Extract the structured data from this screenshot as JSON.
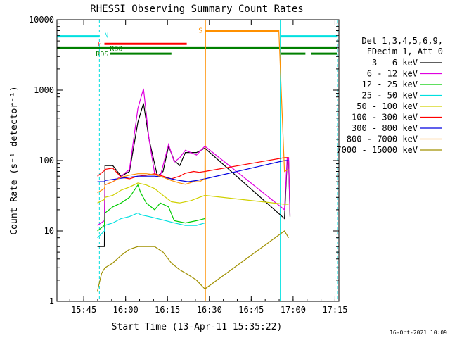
{
  "chart_data": {
    "type": "line",
    "title": "RHESSI Observing Summary Count Rates",
    "xlabel": "Start Time (13-Apr-11 15:35:22)",
    "ylabel": "Count Rate (s⁻¹ detector⁻¹)",
    "y_scale": "log",
    "ylim": [
      1,
      10000
    ],
    "xlim_minutes": [
      0,
      101
    ],
    "x_ticks": [
      {
        "label": "15:45",
        "t": 9.6
      },
      {
        "label": "16:00",
        "t": 24.6
      },
      {
        "label": "16:15",
        "t": 39.6
      },
      {
        "label": "16:30",
        "t": 54.6
      },
      {
        "label": "16:45",
        "t": 69.6
      },
      {
        "label": "17:00",
        "t": 84.6
      },
      {
        "label": "17:15",
        "t": 99.6
      }
    ],
    "y_ticks": [
      {
        "label": "1",
        "v": 1
      },
      {
        "label": "10",
        "v": 10
      },
      {
        "label": "100",
        "v": 100
      },
      {
        "label": "1000",
        "v": 1000
      },
      {
        "label": "10000",
        "v": 10000
      }
    ],
    "legend_header": [
      "Det 1,3,4,5,6,9,",
      "FDecim 1, Att 0"
    ],
    "series": [
      {
        "name": "3 - 6 keV",
        "color": "#000000",
        "points": [
          [
            14.5,
            6
          ],
          [
            17,
            6
          ],
          [
            17.2,
            85
          ],
          [
            20,
            85
          ],
          [
            23,
            60
          ],
          [
            26,
            70
          ],
          [
            29,
            350
          ],
          [
            31,
            650
          ],
          [
            33,
            200
          ],
          [
            36,
            60
          ],
          [
            38,
            70
          ],
          [
            40,
            160
          ],
          [
            42,
            100
          ],
          [
            44,
            85
          ],
          [
            46,
            130
          ],
          [
            50,
            130
          ],
          [
            53,
            150
          ],
          [
            81.5,
            15
          ],
          [
            82.5,
            100
          ],
          [
            83,
            100
          ],
          [
            83.5,
            16
          ]
        ]
      },
      {
        "name": "6 - 12 keV",
        "color": "#e000e0",
        "points": [
          [
            14.5,
            12
          ],
          [
            17,
            14
          ],
          [
            17.2,
            45
          ],
          [
            20,
            50
          ],
          [
            23,
            60
          ],
          [
            26,
            75
          ],
          [
            29,
            550
          ],
          [
            31,
            1050
          ],
          [
            33,
            200
          ],
          [
            35,
            65
          ],
          [
            37,
            60
          ],
          [
            40,
            170
          ],
          [
            42,
            95
          ],
          [
            44,
            110
          ],
          [
            46,
            140
          ],
          [
            50,
            120
          ],
          [
            53,
            160
          ],
          [
            81.5,
            20
          ],
          [
            82.5,
            110
          ],
          [
            83,
            110
          ],
          [
            83.5,
            17
          ]
        ]
      },
      {
        "name": "12 - 25 keV",
        "color": "#00cc00",
        "points": [
          [
            14.5,
            10
          ],
          [
            17,
            12
          ],
          [
            17.2,
            18
          ],
          [
            20,
            22
          ],
          [
            23,
            25
          ],
          [
            26,
            30
          ],
          [
            29,
            45
          ],
          [
            30,
            35
          ],
          [
            32,
            25
          ],
          [
            35,
            20
          ],
          [
            37,
            25
          ],
          [
            40,
            22
          ],
          [
            42,
            14
          ],
          [
            46,
            13
          ],
          [
            50,
            14
          ],
          [
            53,
            15
          ]
        ]
      },
      {
        "name": "25 - 50 keV",
        "color": "#00e0e0",
        "points": [
          [
            14.5,
            8
          ],
          [
            17,
            10
          ],
          [
            17.2,
            12
          ],
          [
            20,
            13
          ],
          [
            23,
            15
          ],
          [
            26,
            16
          ],
          [
            29,
            18
          ],
          [
            30,
            17
          ],
          [
            33,
            16
          ],
          [
            36,
            15
          ],
          [
            39,
            14
          ],
          [
            42,
            13
          ],
          [
            46,
            12
          ],
          [
            50,
            12
          ],
          [
            53,
            13
          ]
        ]
      },
      {
        "name": "50 - 100 keV",
        "color": "#d0d000",
        "points": [
          [
            14.5,
            25
          ],
          [
            17,
            28
          ],
          [
            17.2,
            30
          ],
          [
            20,
            32
          ],
          [
            23,
            38
          ],
          [
            26,
            42
          ],
          [
            29,
            48
          ],
          [
            32,
            45
          ],
          [
            35,
            40
          ],
          [
            38,
            32
          ],
          [
            41,
            26
          ],
          [
            44,
            25
          ],
          [
            48,
            27
          ],
          [
            51,
            30
          ],
          [
            53,
            32
          ],
          [
            81.5,
            24
          ],
          [
            83,
            24
          ]
        ]
      },
      {
        "name": "100 - 300 keV",
        "color": "#ff0000",
        "points": [
          [
            14.5,
            60
          ],
          [
            17,
            72
          ],
          [
            17.2,
            75
          ],
          [
            20,
            78
          ],
          [
            23,
            58
          ],
          [
            26,
            55
          ],
          [
            29,
            60
          ],
          [
            32,
            62
          ],
          [
            35,
            65
          ],
          [
            38,
            60
          ],
          [
            41,
            55
          ],
          [
            44,
            60
          ],
          [
            46,
            66
          ],
          [
            49,
            70
          ],
          [
            51,
            68
          ],
          [
            53,
            70
          ],
          [
            81.5,
            110
          ],
          [
            83,
            110
          ]
        ]
      },
      {
        "name": "300 - 800 keV",
        "color": "#0000e0",
        "points": [
          [
            14.5,
            50
          ],
          [
            17,
            50
          ],
          [
            17.2,
            52
          ],
          [
            20,
            54
          ],
          [
            23,
            56
          ],
          [
            26,
            58
          ],
          [
            29,
            60
          ],
          [
            32,
            60
          ],
          [
            35,
            60
          ],
          [
            38,
            58
          ],
          [
            41,
            55
          ],
          [
            44,
            52
          ],
          [
            47,
            50
          ],
          [
            50,
            52
          ],
          [
            53,
            55
          ],
          [
            81.5,
            100
          ],
          [
            83,
            100
          ]
        ]
      },
      {
        "name": "800 - 7000 keV",
        "color": "#ff9000",
        "points": [
          [
            14.5,
            35
          ],
          [
            17,
            40
          ],
          [
            17.2,
            45
          ],
          [
            20,
            50
          ],
          [
            23,
            58
          ],
          [
            26,
            62
          ],
          [
            29,
            65
          ],
          [
            32,
            65
          ],
          [
            35,
            63
          ],
          [
            38,
            58
          ],
          [
            41,
            52
          ],
          [
            44,
            48
          ],
          [
            46,
            46
          ],
          [
            49,
            50
          ],
          [
            51,
            50
          ],
          [
            53,
            55
          ],
          [
            53.2,
            7000
          ],
          [
            79.5,
            7000
          ],
          [
            81.5,
            70
          ],
          [
            83,
            75
          ]
        ]
      },
      {
        "name": "7000 - 15000 keV",
        "color": "#a09000",
        "points": [
          [
            14.5,
            1.4
          ],
          [
            16,
            2.5
          ],
          [
            17.2,
            3
          ],
          [
            20,
            3.5
          ],
          [
            23,
            4.5
          ],
          [
            26,
            5.5
          ],
          [
            29,
            6
          ],
          [
            32,
            6
          ],
          [
            35,
            6
          ],
          [
            38,
            5
          ],
          [
            41,
            3.5
          ],
          [
            44,
            2.8
          ],
          [
            47,
            2.4
          ],
          [
            50,
            2
          ],
          [
            53,
            1.5
          ],
          [
            81.5,
            10
          ],
          [
            83,
            8
          ]
        ]
      }
    ],
    "flag_bars": [
      {
        "label": "N",
        "color": "#00e0e0",
        "segments": [
          [
            0,
            15.2
          ],
          [
            80,
            100.5
          ]
        ],
        "v": 5800
      },
      {
        "label": "S",
        "color": "#ff9000",
        "segments": [
          [
            53.2,
            79.3
          ]
        ],
        "v": 7000
      },
      {
        "label": "F",
        "color": "#ff0000",
        "segments": [
          [
            17,
            46.5
          ]
        ],
        "v": 4550
      },
      {
        "label": "RD0",
        "color": "#008000",
        "segments": [
          [
            0,
            100.5
          ]
        ],
        "v": 3950
      },
      {
        "label": "RDS",
        "color": "#008000",
        "segments": [
          [
            19,
            41
          ],
          [
            80,
            89
          ],
          [
            91,
            100.5
          ]
        ],
        "v": 3300
      }
    ],
    "vlines": [
      {
        "t": 0,
        "color": "#00e0e0",
        "style": "solid"
      },
      {
        "t": 15.2,
        "color": "#00e0e0",
        "style": "dashed"
      },
      {
        "t": 53.2,
        "color": "#ff9000",
        "style": "solid"
      },
      {
        "t": 80,
        "color": "#00e0e0",
        "style": "solid"
      },
      {
        "t": 100.5,
        "color": "#00e0e0",
        "style": "dashed"
      }
    ],
    "footer_date": "16-Oct-2021 10:09"
  }
}
